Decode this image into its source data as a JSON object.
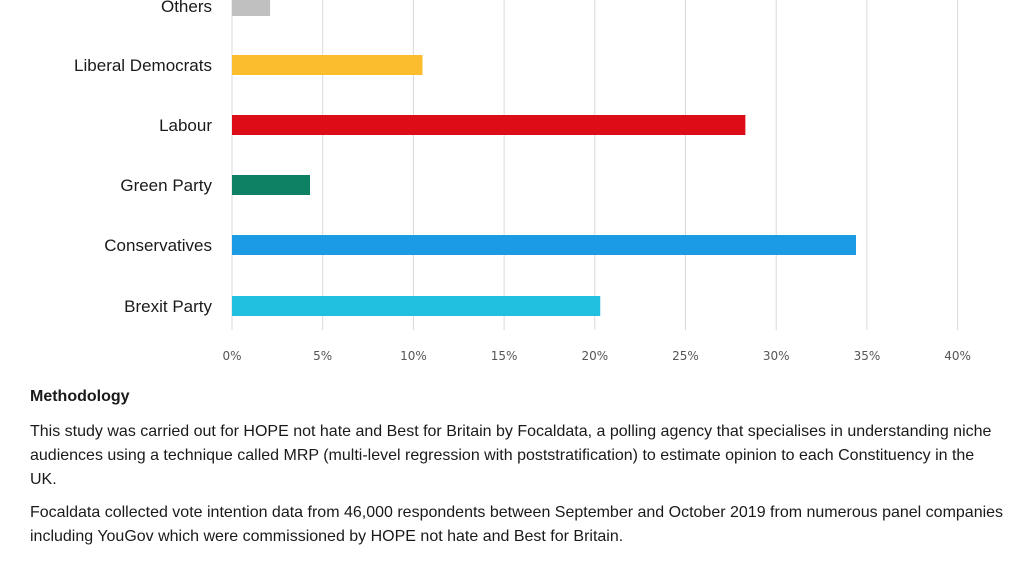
{
  "chart_data": {
    "type": "bar",
    "orientation": "horizontal",
    "categories": [
      "Others",
      "Liberal Democrats",
      "Labour",
      "Green Party",
      "Conservatives",
      "Brexit Party"
    ],
    "values": [
      2.1,
      10.5,
      28.3,
      4.3,
      34.4,
      20.3
    ],
    "colors": [
      "#c0c0c0",
      "#fbbd2e",
      "#dc0d17",
      "#0e8164",
      "#1a9be3",
      "#21bfe0"
    ],
    "xticks": [
      "0%",
      "5%",
      "10%",
      "15%",
      "20%",
      "25%",
      "30%",
      "35%",
      "40%"
    ],
    "xlim": [
      0,
      40
    ],
    "grid": true
  },
  "methodology": {
    "heading": "Methodology",
    "paragraph1": "This study was carried out for HOPE not hate and Best for Britain by Focaldata, a polling agency that specialises in understanding niche audiences using a technique called MRP (multi-level regression with poststratification) to estimate opinion to each Constituency in the UK.",
    "paragraph2": "Focaldata collected vote intention data from 46,000 respondents between September and October 2019 from numerous panel companies including YouGov which were commissioned by HOPE not hate and Best for Britain."
  }
}
